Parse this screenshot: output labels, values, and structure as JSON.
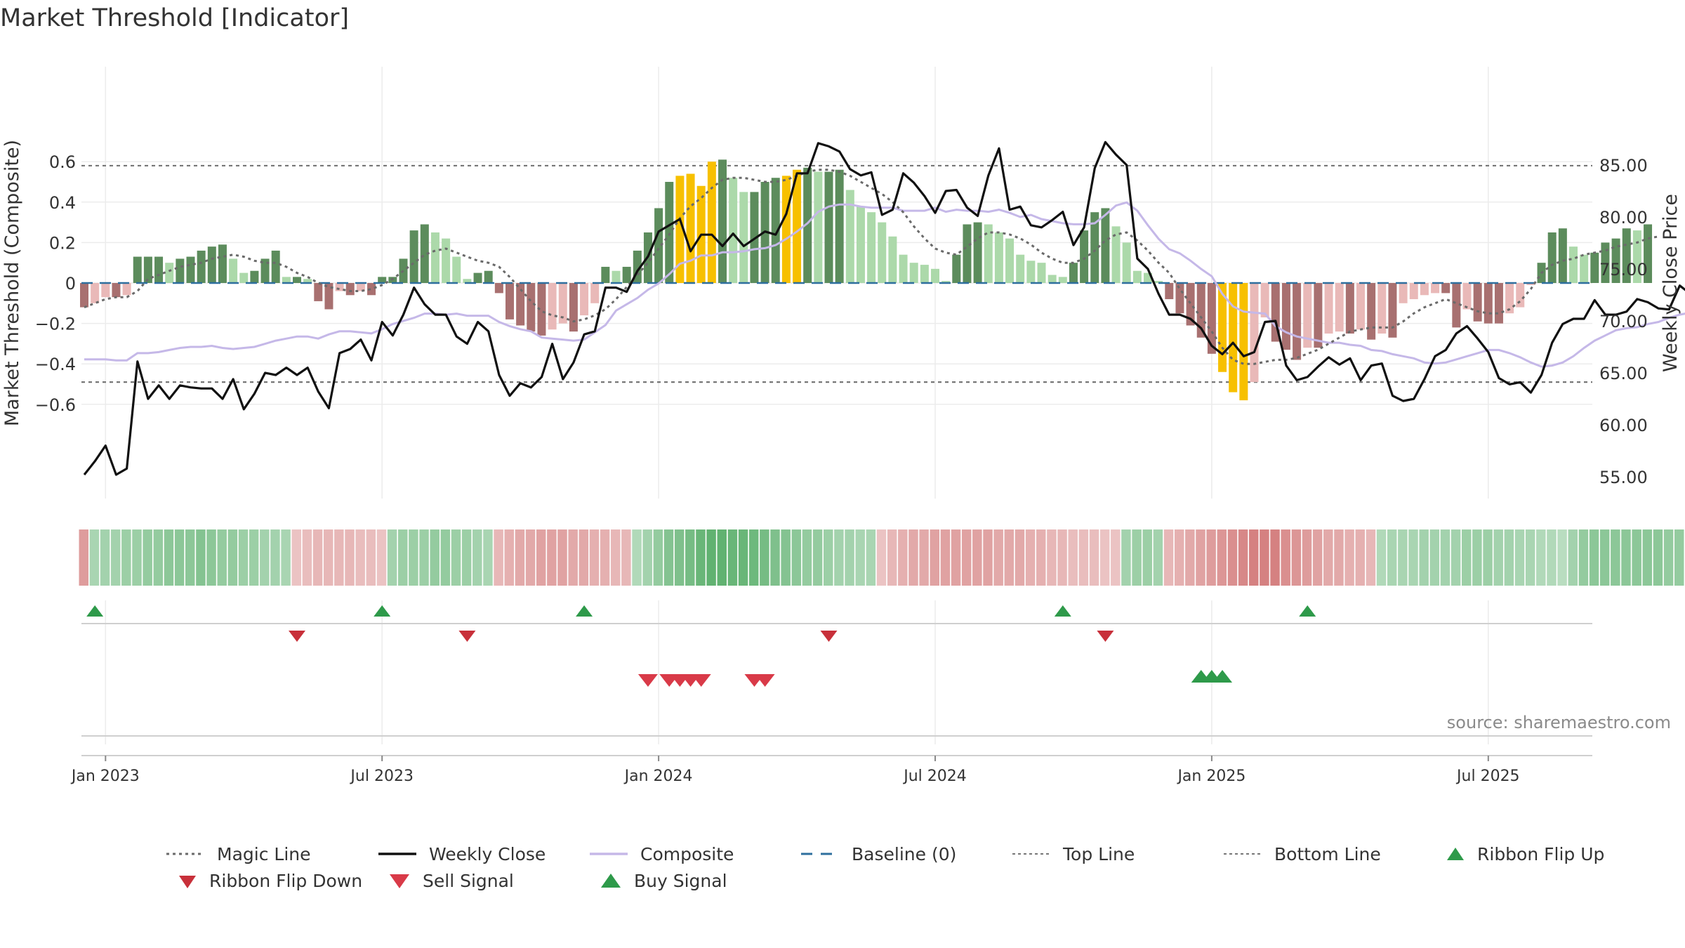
{
  "title": "Market Threshold [Indicator]",
  "source": "source: sharemaestro.com",
  "colors": {
    "magic": "#6a6a6a",
    "close": "#111111",
    "composite": "#c5b8e8",
    "baseline": "#2e6f9e",
    "threshold": "#777777",
    "buy": "#2e9a4a",
    "sell": "#d93a48",
    "flipDown": "#c8303a",
    "pos_strong": "#5c8c5c",
    "pos_light": "#acd9aa",
    "neg_strong": "#a87070",
    "neg_light": "#e9b9b8",
    "extreme": "#f7c000"
  },
  "legend": [
    {
      "label": "Magic Line",
      "icon": "dotted-line"
    },
    {
      "label": "Weekly Close",
      "icon": "solid-line"
    },
    {
      "label": "Composite",
      "icon": "lavender-line"
    },
    {
      "label": "Baseline (0)",
      "icon": "dashed-line"
    },
    {
      "label": "Top Line",
      "icon": "dotted-line-thin"
    },
    {
      "label": "Bottom Line",
      "icon": "dotted-line-thin"
    },
    {
      "label": "Ribbon Flip Up",
      "icon": "triangle-up-icon"
    },
    {
      "label": "Ribbon Flip Down",
      "icon": "triangle-down-icon"
    },
    {
      "label": "Sell Signal",
      "icon": "triangle-down-icon"
    },
    {
      "label": "Buy Signal",
      "icon": "triangle-up-icon"
    }
  ],
  "chart_data": {
    "type": "bar",
    "title": "Market Threshold [Indicator]",
    "ylabel_left": "Market Threshold (Composite)",
    "ylabel_right": "Weekly Close Price",
    "ylim_left": [
      -0.62,
      0.62
    ],
    "ylim_right": [
      53.5,
      88.5
    ],
    "yticks_left": [
      "0.6",
      "0.4",
      "0.2",
      "0",
      "−0.2",
      "−0.4",
      "−0.6"
    ],
    "yticks_left_values": [
      0.6,
      0.4,
      0.2,
      0,
      -0.2,
      -0.4,
      -0.6
    ],
    "yticks_right": [
      "85.00",
      "80.00",
      "75.00",
      "70.00",
      "65.00",
      "60.00",
      "55.00"
    ],
    "yticks_right_values": [
      85,
      80,
      75,
      70,
      65,
      60,
      55
    ],
    "xticks": [
      "Jan 2023",
      "Jul 2023",
      "Jan 2024",
      "Jul 2024",
      "Jan 2025",
      "Jul 2025"
    ],
    "xticks_week": [
      2,
      28,
      54,
      80,
      106,
      132
    ],
    "top_line": 0.58,
    "bottom_line": -0.49,
    "baseline": 0,
    "grid": true,
    "legend_placement": "bottom",
    "composite_bars": [
      -0.12,
      -0.1,
      -0.07,
      -0.07,
      -0.06,
      0.13,
      0.13,
      0.13,
      0.1,
      0.12,
      0.13,
      0.16,
      0.18,
      0.19,
      0.12,
      0.05,
      0.06,
      0.12,
      0.16,
      0.03,
      0.03,
      0.02,
      -0.09,
      -0.13,
      -0.04,
      -0.06,
      -0.04,
      -0.06,
      0.03,
      0.03,
      0.12,
      0.26,
      0.29,
      0.25,
      0.22,
      0.13,
      0.02,
      0.05,
      0.06,
      -0.05,
      -0.18,
      -0.21,
      -0.24,
      -0.26,
      -0.23,
      -0.2,
      -0.24,
      -0.16,
      -0.1,
      0.08,
      0.06,
      0.08,
      0.16,
      0.25,
      0.37,
      0.5,
      0.53,
      0.54,
      0.48,
      0.6,
      0.61,
      0.52,
      0.45,
      0.45,
      0.5,
      0.52,
      0.53,
      0.56,
      0.57,
      0.55,
      0.55,
      0.56,
      0.46,
      0.38,
      0.35,
      0.3,
      0.23,
      0.14,
      0.1,
      0.09,
      0.07,
      0.01,
      0.14,
      0.29,
      0.3,
      0.29,
      0.25,
      0.22,
      0.14,
      0.11,
      0.1,
      0.04,
      0.03,
      0.1,
      0.26,
      0.35,
      0.37,
      0.28,
      0.2,
      0.06,
      0.05,
      0.01,
      -0.08,
      -0.15,
      -0.21,
      -0.27,
      -0.35,
      -0.44,
      -0.54,
      -0.58,
      -0.49,
      -0.17,
      -0.29,
      -0.33,
      -0.38,
      -0.32,
      -0.32,
      -0.25,
      -0.24,
      -0.25,
      -0.23,
      -0.28,
      -0.25,
      -0.27,
      -0.1,
      -0.08,
      -0.06,
      -0.05,
      -0.05,
      -0.22,
      -0.13,
      -0.19,
      -0.2,
      -0.2,
      -0.15,
      -0.12,
      -0.01,
      0.1,
      0.25,
      0.27,
      0.18,
      0.14,
      0.15,
      0.2,
      0.22,
      0.27,
      0.26,
      0.29
    ],
    "extreme_weeks": [
      56,
      57,
      58,
      59,
      66,
      67,
      107,
      108,
      109
    ],
    "weekly_close": [
      55.2,
      56.5,
      58,
      55.2,
      55.8,
      66.1,
      62.5,
      63.8,
      62.5,
      63.8,
      63.6,
      63.5,
      63.5,
      62.5,
      64.4,
      61.5,
      63,
      65,
      64.8,
      65.5,
      64.8,
      65.5,
      63.2,
      61.6,
      66.9,
      67.3,
      68.2,
      66.2,
      69.9,
      68.6,
      70.6,
      73.2,
      71.6,
      70.6,
      70.6,
      68.5,
      67.8,
      69.9,
      69,
      64.8,
      62.8,
      64,
      63.6,
      64.6,
      67.8,
      64.4,
      66,
      68.7,
      69,
      73.2,
      73.2,
      72.8,
      74.8,
      76.2,
      78.6,
      79.2,
      79.8,
      76.7,
      78.3,
      78.3,
      77.2,
      78.4,
      77.2,
      77.9,
      78.6,
      78.3,
      80.3,
      84.2,
      84.2,
      87.1,
      86.8,
      86.3,
      84.6,
      84,
      84.3,
      80.2,
      80.7,
      84.2,
      83.3,
      82,
      80.4,
      82.5,
      82.6,
      80.9,
      80.1,
      84,
      86.6,
      80.7,
      81,
      79.2,
      79,
      79.7,
      80.5,
      77.3,
      79,
      84.7,
      87.2,
      86,
      85,
      76,
      75,
      72.6,
      70.6,
      70.6,
      70.2,
      69.3,
      67.6,
      66.8,
      67.9,
      66.6,
      67,
      69.9,
      70,
      65.7,
      64.3,
      64.6,
      65.6,
      66.5,
      65.8,
      66.4,
      64.3,
      65.7,
      65.9,
      62.8,
      62.3,
      62.5,
      64.4,
      66.6,
      67.2,
      68.8,
      69.5,
      68.3,
      67,
      64.5,
      63.9,
      64.1,
      63.1,
      64.8,
      67.9,
      69.7,
      70.2,
      70.2,
      72,
      70.6,
      70.6,
      70.9,
      72.1,
      71.8,
      71.2,
      71.1,
      73.4,
      72.6,
      73.2
    ],
    "composite_line": [
      66.3,
      66.3,
      66.3,
      66.2,
      66.2,
      66.9,
      66.9,
      67,
      67.2,
      67.4,
      67.5,
      67.5,
      67.6,
      67.4,
      67.3,
      67.4,
      67.5,
      67.8,
      68.1,
      68.3,
      68.5,
      68.5,
      68.3,
      68.7,
      69,
      69,
      68.9,
      68.8,
      69.2,
      69.7,
      70,
      70.3,
      70.7,
      70.7,
      70.6,
      70.7,
      70.5,
      70.5,
      70.5,
      69.9,
      69.5,
      69.2,
      69,
      68.4,
      68.3,
      68.2,
      68.1,
      68.2,
      68.9,
      69.6,
      71,
      71.6,
      72.2,
      73,
      73.6,
      74.5,
      75.5,
      75.8,
      76.3,
      76.3,
      76.6,
      76.6,
      76.7,
      76.9,
      77,
      77.3,
      77.9,
      78.6,
      79.4,
      80.5,
      81,
      81.2,
      81.2,
      81,
      80.9,
      80.9,
      80.9,
      80.6,
      80.6,
      80.6,
      80.9,
      80.5,
      80.7,
      80.6,
      80.6,
      80.5,
      80.7,
      80.4,
      80,
      80.2,
      79.8,
      79.6,
      79.4,
      79.3,
      79.3,
      79.4,
      80.2,
      81.1,
      81.4,
      80.6,
      79.2,
      77.9,
      76.9,
      76.5,
      75.8,
      75,
      74.3,
      72.6,
      71.4,
      70.9,
      70.8,
      70.7,
      69.5,
      68.9,
      68.5,
      68.3,
      68.1,
      67.9,
      67.9,
      67.7,
      67.6,
      67.2,
      67.1,
      66.8,
      66.6,
      66.4,
      66,
      65.9,
      66,
      66.3,
      66.6,
      66.9,
      67.2,
      67.2,
      66.9,
      66.5,
      66,
      65.6,
      65.7,
      66,
      66.6,
      67.4,
      68.1,
      68.6,
      69.1,
      69.3,
      69.4,
      69.7,
      69.9,
      70.3,
      70.6,
      70.8
    ],
    "magic_line": [
      -0.12,
      -0.1,
      -0.08,
      -0.07,
      -0.07,
      -0.04,
      0.02,
      0.04,
      0.06,
      0.08,
      0.09,
      0.1,
      0.12,
      0.13,
      0.14,
      0.13,
      0.11,
      0.1,
      0.1,
      0.08,
      0.05,
      0.03,
      0.0,
      -0.02,
      -0.03,
      -0.04,
      -0.04,
      -0.03,
      -0.01,
      0.02,
      0.06,
      0.1,
      0.14,
      0.16,
      0.17,
      0.15,
      0.13,
      0.11,
      0.1,
      0.08,
      0.03,
      -0.03,
      -0.09,
      -0.14,
      -0.16,
      -0.17,
      -0.19,
      -0.18,
      -0.16,
      -0.13,
      -0.08,
      -0.02,
      0.04,
      0.1,
      0.17,
      0.24,
      0.32,
      0.38,
      0.42,
      0.47,
      0.51,
      0.52,
      0.52,
      0.51,
      0.5,
      0.5,
      0.51,
      0.53,
      0.55,
      0.56,
      0.56,
      0.55,
      0.53,
      0.5,
      0.47,
      0.44,
      0.4,
      0.35,
      0.28,
      0.22,
      0.17,
      0.15,
      0.14,
      0.18,
      0.22,
      0.25,
      0.25,
      0.24,
      0.22,
      0.19,
      0.15,
      0.12,
      0.1,
      0.1,
      0.12,
      0.16,
      0.21,
      0.24,
      0.25,
      0.21,
      0.16,
      0.1,
      0.05,
      -0.03,
      -0.1,
      -0.17,
      -0.24,
      -0.32,
      -0.38,
      -0.4,
      -0.4,
      -0.39,
      -0.38,
      -0.38,
      -0.37,
      -0.35,
      -0.33,
      -0.3,
      -0.27,
      -0.24,
      -0.23,
      -0.22,
      -0.22,
      -0.22,
      -0.19,
      -0.15,
      -0.12,
      -0.1,
      -0.08,
      -0.1,
      -0.12,
      -0.14,
      -0.15,
      -0.15,
      -0.13,
      -0.09,
      -0.03,
      0.05,
      0.09,
      0.11,
      0.12,
      0.14,
      0.15,
      0.16,
      0.18,
      0.19,
      0.2,
      0.22,
      0.23
    ],
    "ribbon_intensity": [
      -0.5,
      0.25,
      0.3,
      0.3,
      0.35,
      0.35,
      0.4,
      0.4,
      0.45,
      0.45,
      0.45,
      0.5,
      0.45,
      0.4,
      0.4,
      0.35,
      0.35,
      0.3,
      0.3,
      0.25,
      -0.2,
      -0.25,
      -0.3,
      -0.3,
      -0.3,
      -0.3,
      -0.25,
      -0.25,
      -0.2,
      0.3,
      0.35,
      0.35,
      0.35,
      0.4,
      0.4,
      0.35,
      0.35,
      0.3,
      0.25,
      -0.3,
      -0.35,
      -0.4,
      -0.4,
      -0.45,
      -0.45,
      -0.45,
      -0.4,
      -0.4,
      -0.35,
      -0.35,
      -0.3,
      -0.3,
      0.2,
      0.3,
      0.4,
      0.5,
      0.55,
      0.6,
      0.7,
      0.75,
      0.75,
      0.7,
      0.7,
      0.65,
      0.6,
      0.55,
      0.5,
      0.45,
      0.4,
      0.4,
      0.35,
      0.3,
      0.3,
      0.25,
      0.25,
      -0.2,
      -0.3,
      -0.35,
      -0.4,
      -0.4,
      -0.45,
      -0.45,
      -0.45,
      -0.45,
      -0.45,
      -0.45,
      -0.4,
      -0.4,
      -0.4,
      -0.35,
      -0.35,
      -0.3,
      -0.3,
      -0.25,
      -0.25,
      -0.25,
      -0.2,
      -0.2,
      0.3,
      0.35,
      0.35,
      0.3,
      -0.3,
      -0.35,
      -0.4,
      -0.45,
      -0.5,
      -0.55,
      -0.6,
      -0.65,
      -0.7,
      -0.7,
      -0.7,
      -0.6,
      -0.55,
      -0.5,
      -0.45,
      -0.4,
      -0.4,
      -0.35,
      -0.35,
      -0.3,
      0.2,
      0.25,
      0.25,
      0.25,
      0.3,
      0.3,
      0.3,
      0.3,
      0.35,
      0.35,
      0.35,
      0.3,
      0.3,
      0.25,
      0.25,
      0.2,
      0.2,
      0.15,
      0.3,
      0.4,
      0.45,
      0.45,
      0.45,
      0.45,
      0.45,
      0.45,
      0.45,
      0.4,
      0.4
    ],
    "ribbon_flip_up_weeks": [
      1,
      28,
      47,
      92,
      115
    ],
    "ribbon_flip_down_weeks": [
      20,
      36,
      70,
      96
    ],
    "sell_signal_weeks": [
      53,
      55,
      56,
      57,
      58,
      63,
      64
    ],
    "buy_signal_weeks": [
      105,
      106,
      107
    ]
  }
}
